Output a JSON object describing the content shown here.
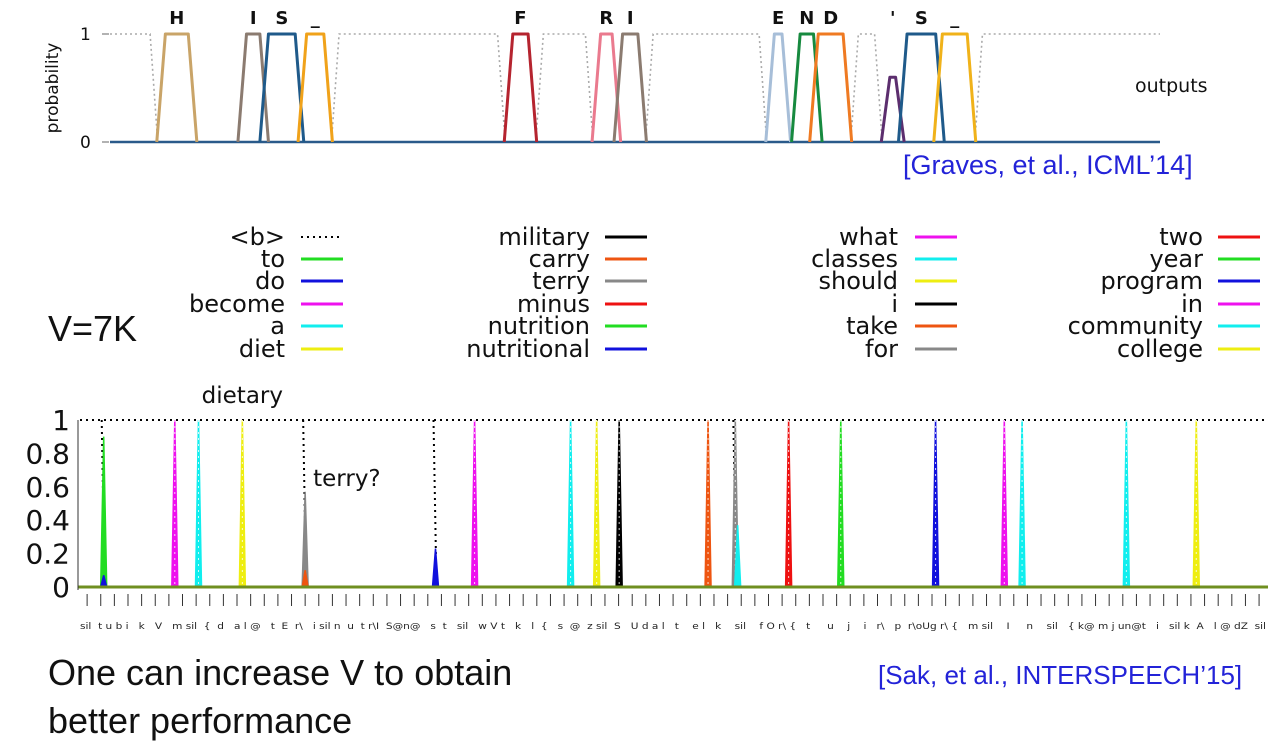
{
  "slide": {
    "v_label": "V=7K",
    "caption_line1": "One can increase V to obtain",
    "caption_line2": "better performance",
    "cite_top": "[Graves, et al., ICML’14]",
    "cite_bottom": "[Sak, et al., INTERSPEECH’15]"
  },
  "chart_data": [
    {
      "type": "line",
      "title": "",
      "ylabel": "probability",
      "yticks": [
        "0",
        "1"
      ],
      "ylim": [
        0,
        1
      ],
      "xlim": [
        0,
        110
      ],
      "annotation": "outputs",
      "blank_color": "#aaaaaa",
      "peaks": [
        {
          "label": "H",
          "t": 7,
          "v": 1.0,
          "color": "#c9a468",
          "w": 1.2
        },
        {
          "label": "I",
          "t": 15,
          "v": 1.0,
          "color": "#8b7b70",
          "w": 0.7
        },
        {
          "label": "S",
          "t": 18,
          "v": 1.0,
          "color": "#1f5a8a",
          "w": 1.4
        },
        {
          "label": "_",
          "t": 21.5,
          "v": 1.0,
          "color": "#f0a21a",
          "w": 0.9
        },
        {
          "label": "F",
          "t": 43,
          "v": 1.0,
          "color": "#b5242f",
          "w": 0.8
        },
        {
          "label": "R",
          "t": 52,
          "v": 1.0,
          "color": "#ea7a8e",
          "w": 0.6
        },
        {
          "label": "I",
          "t": 54.5,
          "v": 1.0,
          "color": "#8b7b70",
          "w": 0.8
        },
        {
          "label": "E",
          "t": 70,
          "v": 1.0,
          "color": "#a7bed8",
          "w": 0.4
        },
        {
          "label": "N",
          "t": 73,
          "v": 1.0,
          "color": "#178a3f",
          "w": 0.7
        },
        {
          "label": "D",
          "t": 75.5,
          "v": 1.0,
          "color": "#ef7a22",
          "w": 1.3
        },
        {
          "label": "'",
          "t": 82,
          "v": 0.6,
          "color": "#5c2e6e",
          "w": 0.3
        },
        {
          "label": "S",
          "t": 85,
          "v": 1.0,
          "color": "#1f5a8a",
          "w": 1.5
        },
        {
          "label": "_",
          "t": 88.5,
          "v": 1.0,
          "color": "#f0b21a",
          "w": 1.3
        }
      ]
    },
    {
      "type": "line",
      "title": "",
      "xlabel": "",
      "ylabel": "",
      "ylim": [
        0,
        1
      ],
      "yticks": [
        "0",
        "0.2",
        "0.4",
        "0.6",
        "0.8",
        "1"
      ],
      "xlim": [
        0,
        1000
      ],
      "series": [
        {
          "name": "<b>",
          "color": "#000000",
          "style": "dotted"
        },
        {
          "name": "to",
          "color": "#22dd22"
        },
        {
          "name": "do",
          "color": "#1111dd"
        },
        {
          "name": "become",
          "color": "#ee11ee"
        },
        {
          "name": "a",
          "color": "#11eeee"
        },
        {
          "name": "diet",
          "color": "#eeee11"
        },
        {
          "name": "military",
          "color": "#000000"
        },
        {
          "name": "carry",
          "color": "#ee5511"
        },
        {
          "name": "terry",
          "color": "#888888"
        },
        {
          "name": "minus",
          "color": "#ee1111"
        },
        {
          "name": "nutrition",
          "color": "#22dd22"
        },
        {
          "name": "nutritional",
          "color": "#1111dd"
        },
        {
          "name": "what",
          "color": "#ee11ee"
        },
        {
          "name": "classes",
          "color": "#11eeee"
        },
        {
          "name": "should",
          "color": "#eeee11"
        },
        {
          "name": "i",
          "color": "#000000"
        },
        {
          "name": "take",
          "color": "#ee5511"
        },
        {
          "name": "for",
          "color": "#888888"
        },
        {
          "name": "two",
          "color": "#ee1111"
        },
        {
          "name": "year",
          "color": "#22dd22"
        },
        {
          "name": "program",
          "color": "#1111dd"
        },
        {
          "name": "in",
          "color": "#ee11ee"
        },
        {
          "name": "community",
          "color": "#11eeee"
        },
        {
          "name": "college",
          "color": "#eeee11"
        }
      ],
      "spikes": [
        {
          "x": 20,
          "v": 0.9,
          "color": "#22dd22"
        },
        {
          "x": 20,
          "v": 0.07,
          "color": "#1111dd"
        },
        {
          "x": 80,
          "v": 1.0,
          "color": "#ee11ee"
        },
        {
          "x": 100,
          "v": 1.0,
          "color": "#11eeee"
        },
        {
          "x": 137,
          "v": 1.0,
          "color": "#eeee11"
        },
        {
          "x": 190,
          "v": 0.57,
          "color": "#888888"
        },
        {
          "x": 190,
          "v": 0.1,
          "color": "#ee5511"
        },
        {
          "x": 300,
          "v": 0.23,
          "color": "#1111dd"
        },
        {
          "x": 333,
          "v": 1.0,
          "color": "#ee11ee"
        },
        {
          "x": 414,
          "v": 1.0,
          "color": "#11eeee"
        },
        {
          "x": 436,
          "v": 1.0,
          "color": "#eeee11"
        },
        {
          "x": 455,
          "v": 1.0,
          "color": "#000000"
        },
        {
          "x": 530,
          "v": 1.0,
          "color": "#ee5511"
        },
        {
          "x": 553,
          "v": 1.0,
          "color": "#888888"
        },
        {
          "x": 555,
          "v": 0.37,
          "color": "#11eeee"
        },
        {
          "x": 598,
          "v": 1.0,
          "color": "#ee1111"
        },
        {
          "x": 642,
          "v": 1.0,
          "color": "#22dd22"
        },
        {
          "x": 722,
          "v": 1.0,
          "color": "#1111dd"
        },
        {
          "x": 780,
          "v": 1.0,
          "color": "#ee11ee"
        },
        {
          "x": 795,
          "v": 1.0,
          "color": "#11eeee"
        },
        {
          "x": 883,
          "v": 1.0,
          "color": "#11eeee"
        },
        {
          "x": 942,
          "v": 1.0,
          "color": "#eeee11"
        }
      ],
      "blank_dotted_dips": [
        20,
        190,
        300,
        553
      ],
      "annotations": [
        {
          "text": "dietary",
          "x": 137
        },
        {
          "text": "terry?",
          "x": 190
        }
      ],
      "phone_labels": "sil  t u b i   k   V   m sil  {  d   a l @   t  E  r\\   i sil n  u  t r\\I  S@n@   s  t   sil   w V t   k   l  {   s  @  z sil  S   U d a l   t    e l   k    sil    f O r\\ {   t     u    j    i   r\\   p  r\\oUg r\\ {   m sil    I     n    sil   { k@ m j un@t   i   sil k  A   l @ dZ  sil"
    }
  ]
}
